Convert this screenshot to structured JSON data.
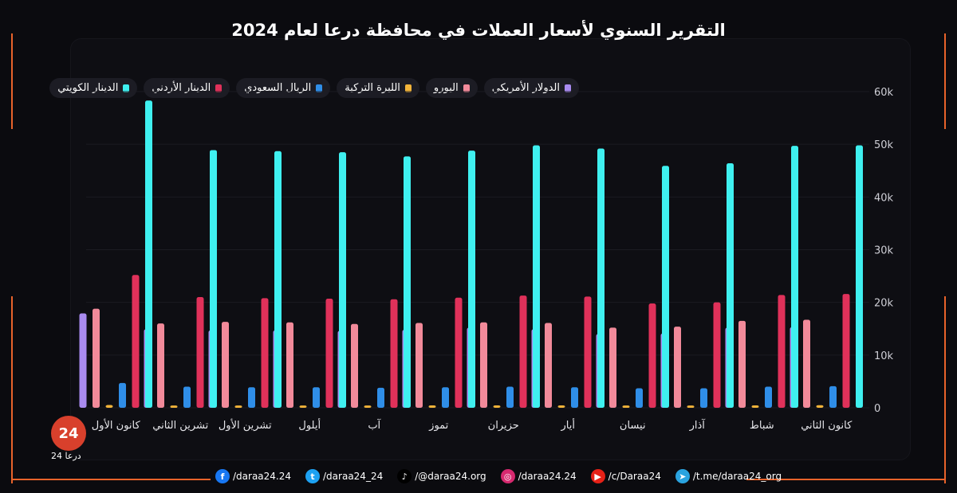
{
  "title": "التقرير السنوي لأسعار العملات في محافظة درعا لعام 2024",
  "chart_data": {
    "type": "bar",
    "categories": [
      "كانون الثاني",
      "شباط",
      "آذار",
      "نيسان",
      "أيار",
      "حزيران",
      "تموز",
      "آب",
      "أيلول",
      "تشرين الأول",
      "تشرين الثاني",
      "كانون الأول"
    ],
    "series": [
      {
        "name": "الدولار الأمريكي",
        "color": "#a98bf0",
        "values": [
          15300,
          15200,
          14100,
          14000,
          14900,
          15200,
          14800,
          14600,
          14700,
          14700,
          14900,
          17900
        ]
      },
      {
        "name": "اليورو",
        "color": "#f28a9a",
        "values": [
          16700,
          16500,
          15400,
          15200,
          16100,
          16200,
          16100,
          15900,
          16200,
          16300,
          16000,
          18800
        ]
      },
      {
        "name": "الليرة التركية",
        "color": "#f2b43a",
        "values": [
          500,
          450,
          430,
          430,
          460,
          460,
          450,
          440,
          440,
          430,
          430,
          520
        ]
      },
      {
        "name": "الريال السعودي",
        "color": "#2f8ee8",
        "values": [
          4100,
          4000,
          3700,
          3700,
          3900,
          4000,
          3900,
          3800,
          3900,
          3900,
          4000,
          4700
        ]
      },
      {
        "name": "الدينار الأردني",
        "color": "#e0315a",
        "values": [
          21600,
          21400,
          20000,
          19800,
          21100,
          21300,
          20900,
          20600,
          20700,
          20800,
          21000,
          25200
        ]
      },
      {
        "name": "الدينار الكويتي",
        "color": "#3ff0f0",
        "values": [
          49800,
          49700,
          46400,
          45900,
          49200,
          49800,
          48800,
          47700,
          48500,
          48700,
          48900,
          58300
        ]
      }
    ],
    "ylim": [
      0,
      60000
    ],
    "yticks": [
      "0",
      "10k",
      "20k",
      "30k",
      "40k",
      "50k",
      "60k"
    ],
    "grid": true,
    "legend_position": "top"
  },
  "branding": {
    "logo_text": "24",
    "logo_sub": "درعا 24"
  },
  "social": [
    {
      "icon": "facebook-icon",
      "color": "#1877f2",
      "glyph": "f",
      "label": "/daraa24.24"
    },
    {
      "icon": "twitter-icon",
      "color": "#1da1f2",
      "glyph": "t",
      "label": "/daraa24_24"
    },
    {
      "icon": "tiktok-icon",
      "color": "#000000",
      "glyph": "♪",
      "label": "/@daraa24.org"
    },
    {
      "icon": "instagram-icon",
      "color": "#d6296f",
      "glyph": "◎",
      "label": "/daraa24.24"
    },
    {
      "icon": "youtube-icon",
      "color": "#e62117",
      "glyph": "▶",
      "label": "/c/Daraa24"
    },
    {
      "icon": "telegram-icon",
      "color": "#2aa3df",
      "glyph": "➤",
      "label": "/t.me/daraa24_org"
    }
  ]
}
